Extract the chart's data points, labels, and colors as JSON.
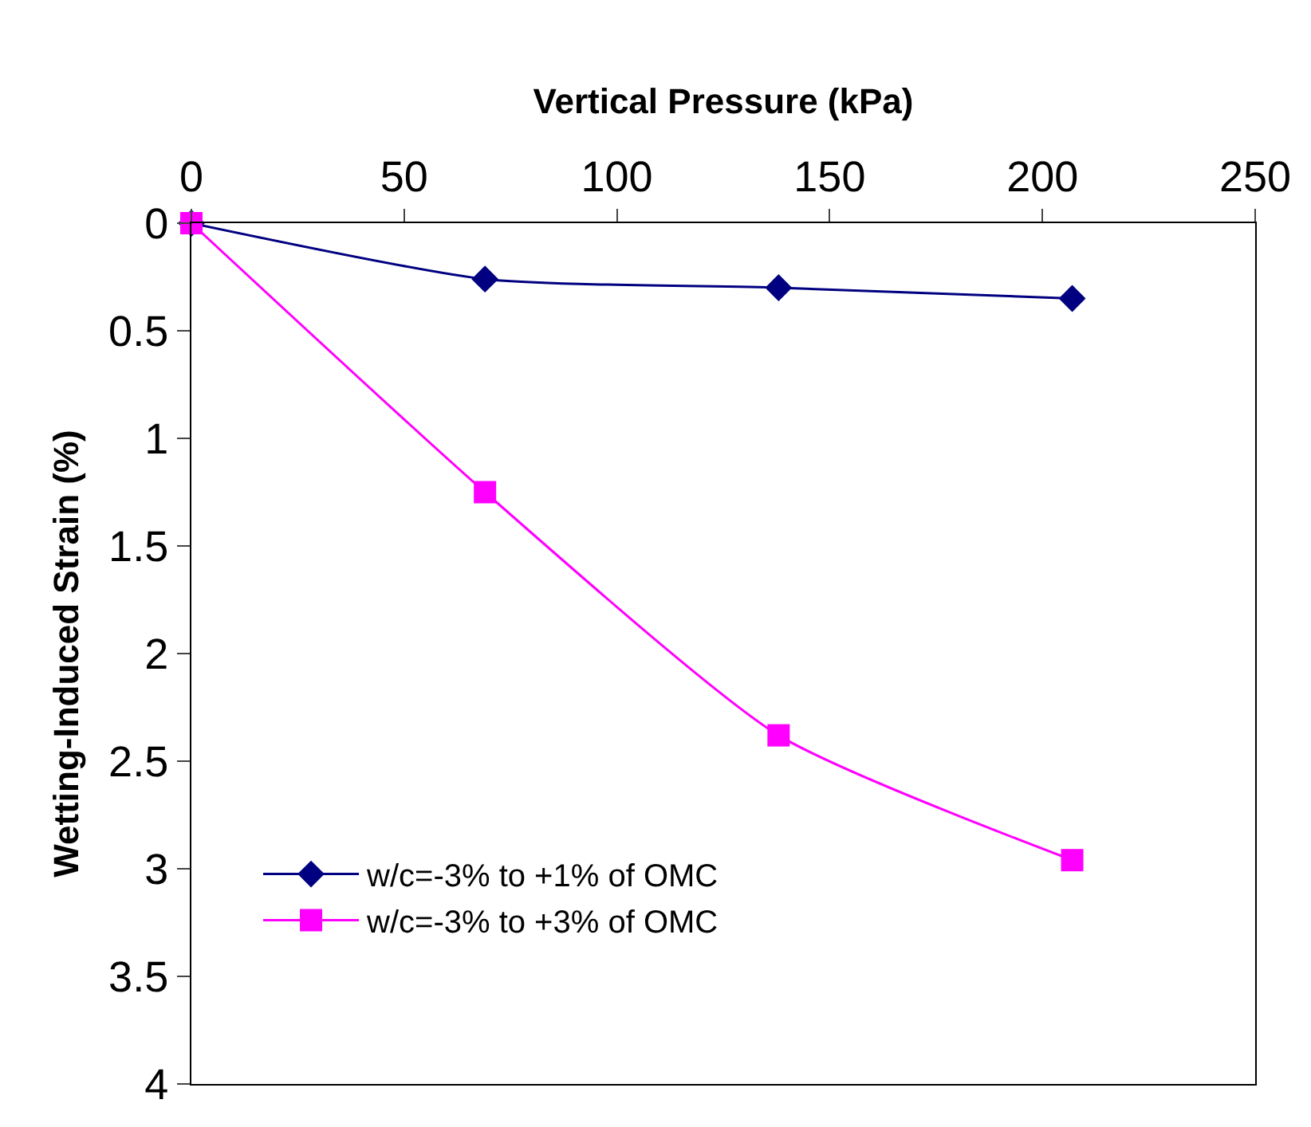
{
  "chart_data": {
    "type": "line",
    "xlabel": "Vertical Pressure (kPa)",
    "ylabel": "Wetting-Induced Strain (%)",
    "x": [
      0,
      69,
      138,
      207
    ],
    "series": [
      {
        "name": "w/c=-3% to +1% of OMC",
        "color": "#000080",
        "marker": "diamond",
        "values": [
          0,
          0.26,
          0.3,
          0.35
        ]
      },
      {
        "name": "w/c=-3% to +3% of OMC",
        "color": "#ff00ff",
        "marker": "square",
        "values": [
          0,
          1.25,
          2.38,
          2.96
        ]
      }
    ],
    "xlim": [
      0,
      250
    ],
    "xticks": [
      0,
      50,
      100,
      150,
      200,
      250
    ],
    "ylim": [
      4,
      0
    ],
    "yticks": [
      0,
      0.5,
      1,
      1.5,
      2,
      2.5,
      3,
      3.5,
      4
    ],
    "grid": false,
    "legend": "bottom left",
    "line_style": "solid"
  }
}
